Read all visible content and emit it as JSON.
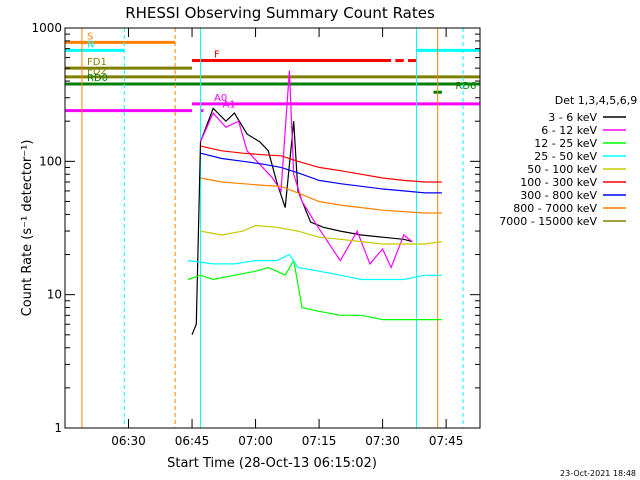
{
  "chart_data": {
    "type": "line",
    "title": "RHESSI Observing Summary Count Rates",
    "xlabel": "Start Time (28-Oct-13 06:15:02)",
    "ylabel": "Count Rate (s⁻¹ detector⁻¹)",
    "y_scale": "log",
    "xlim": [
      "06:15",
      "07:53"
    ],
    "ylim": [
      1,
      1000
    ],
    "x_ticks": [
      "06:30",
      "06:45",
      "07:00",
      "07:15",
      "07:30",
      "07:45"
    ],
    "y_ticks": [
      {
        "value": 1,
        "label": "1"
      },
      {
        "value": 10,
        "label": "10"
      },
      {
        "value": 100,
        "label": "100"
      },
      {
        "value": 1000,
        "label": "1000"
      }
    ],
    "legend_title": "Det 1,3,4,5,6,9",
    "legend_position": "right",
    "timestamp": "23-Oct-2021 18:48",
    "series": [
      {
        "name": "3 - 6 keV",
        "color": "#000000",
        "points": [
          [
            "06:45",
            5
          ],
          [
            "06:46",
            6
          ],
          [
            "06:47",
            140
          ],
          [
            "06:50",
            250
          ],
          [
            "06:53",
            200
          ],
          [
            "06:55",
            230
          ],
          [
            "06:58",
            160
          ],
          [
            "07:01",
            140
          ],
          [
            "07:03",
            120
          ],
          [
            "07:05",
            70
          ],
          [
            "07:07",
            45
          ],
          [
            "07:09",
            200
          ],
          [
            "07:10",
            60
          ],
          [
            "07:13",
            35
          ],
          [
            "07:16",
            32
          ],
          [
            "07:20",
            30
          ],
          [
            "07:25",
            28
          ],
          [
            "07:30",
            27
          ],
          [
            "07:35",
            26
          ],
          [
            "07:37",
            25
          ]
        ]
      },
      {
        "name": "6 - 12 keV",
        "color": "#ff00ff",
        "points": [
          [
            "06:47",
            140
          ],
          [
            "06:50",
            230
          ],
          [
            "06:53",
            180
          ],
          [
            "06:56",
            200
          ],
          [
            "06:58",
            120
          ],
          [
            "07:01",
            95
          ],
          [
            "07:04",
            75
          ],
          [
            "07:06",
            60
          ],
          [
            "07:08",
            480
          ],
          [
            "07:09",
            80
          ],
          [
            "07:11",
            50
          ],
          [
            "07:14",
            35
          ],
          [
            "07:17",
            25
          ],
          [
            "07:20",
            18
          ],
          [
            "07:24",
            30
          ],
          [
            "07:27",
            17
          ],
          [
            "07:30",
            22
          ],
          [
            "07:32",
            16
          ],
          [
            "07:35",
            28
          ],
          [
            "07:37",
            25
          ]
        ]
      },
      {
        "name": "12 - 25 keV",
        "color": "#00ff00",
        "points": [
          [
            "06:44",
            13
          ],
          [
            "06:47",
            14
          ],
          [
            "06:50",
            13
          ],
          [
            "06:55",
            14
          ],
          [
            "07:00",
            15
          ],
          [
            "07:03",
            16
          ],
          [
            "07:05",
            15
          ],
          [
            "07:07",
            14
          ],
          [
            "07:09",
            18
          ],
          [
            "07:11",
            8
          ],
          [
            "07:15",
            7.5
          ],
          [
            "07:20",
            7
          ],
          [
            "07:25",
            7
          ],
          [
            "07:30",
            6.5
          ],
          [
            "07:35",
            6.5
          ],
          [
            "07:40",
            6.5
          ],
          [
            "07:44",
            6.5
          ]
        ]
      },
      {
        "name": "25 - 50 keV",
        "color": "#00ffff",
        "points": [
          [
            "06:44",
            18
          ],
          [
            "06:50",
            17
          ],
          [
            "06:55",
            17
          ],
          [
            "07:00",
            18
          ],
          [
            "07:05",
            18
          ],
          [
            "07:08",
            20
          ],
          [
            "07:10",
            16
          ],
          [
            "07:15",
            15
          ],
          [
            "07:20",
            14
          ],
          [
            "07:25",
            13
          ],
          [
            "07:30",
            13
          ],
          [
            "07:35",
            13
          ],
          [
            "07:40",
            14
          ],
          [
            "07:44",
            14
          ]
        ]
      },
      {
        "name": "50 - 100 keV",
        "color": "#c8c800",
        "points": [
          [
            "06:47",
            30
          ],
          [
            "06:52",
            28
          ],
          [
            "06:57",
            30
          ],
          [
            "07:00",
            33
          ],
          [
            "07:05",
            32
          ],
          [
            "07:10",
            30
          ],
          [
            "07:15",
            27
          ],
          [
            "07:20",
            26
          ],
          [
            "07:25",
            25
          ],
          [
            "07:30",
            24
          ],
          [
            "07:35",
            24
          ],
          [
            "07:40",
            24
          ],
          [
            "07:44",
            25
          ]
        ]
      },
      {
        "name": "100 - 300 keV",
        "color": "#ff0000",
        "points": [
          [
            "06:47",
            130
          ],
          [
            "06:52",
            120
          ],
          [
            "06:57",
            115
          ],
          [
            "07:02",
            112
          ],
          [
            "07:06",
            110
          ],
          [
            "07:10",
            100
          ],
          [
            "07:15",
            90
          ],
          [
            "07:20",
            85
          ],
          [
            "07:25",
            80
          ],
          [
            "07:30",
            75
          ],
          [
            "07:35",
            72
          ],
          [
            "07:40",
            70
          ],
          [
            "07:44",
            70
          ]
        ]
      },
      {
        "name": "300 - 800 keV",
        "color": "#0000ff",
        "points": [
          [
            "06:47",
            115
          ],
          [
            "06:52",
            105
          ],
          [
            "06:57",
            100
          ],
          [
            "07:02",
            95
          ],
          [
            "07:06",
            90
          ],
          [
            "07:10",
            82
          ],
          [
            "07:15",
            72
          ],
          [
            "07:20",
            68
          ],
          [
            "07:25",
            65
          ],
          [
            "07:30",
            62
          ],
          [
            "07:35",
            60
          ],
          [
            "07:40",
            58
          ],
          [
            "07:44",
            58
          ]
        ]
      },
      {
        "name": "800 - 7000 keV",
        "color": "#ff8000",
        "points": [
          [
            "06:47",
            75
          ],
          [
            "06:52",
            70
          ],
          [
            "06:57",
            68
          ],
          [
            "07:02",
            66
          ],
          [
            "07:06",
            65
          ],
          [
            "07:10",
            58
          ],
          [
            "07:15",
            50
          ],
          [
            "07:20",
            47
          ],
          [
            "07:25",
            45
          ],
          [
            "07:30",
            43
          ],
          [
            "07:35",
            42
          ],
          [
            "07:40",
            41
          ],
          [
            "07:44",
            41
          ]
        ]
      },
      {
        "name": "7000 - 15000 keV",
        "color": "#808000",
        "points": []
      }
    ],
    "flags": [
      {
        "label": "S",
        "color": "#ff8000",
        "y": 780,
        "start": "06:15",
        "end": "06:41"
      },
      {
        "label": "N",
        "color": "#00ffff",
        "y": 680,
        "start": "06:15",
        "end": "06:29"
      },
      {
        "label": "N",
        "color": "#00ffff",
        "y": 680,
        "start": "07:38",
        "end": "07:53"
      },
      {
        "label": "F",
        "color": "#ff0000",
        "y": 570,
        "start": "06:45",
        "end": "07:32"
      },
      {
        "label": "F",
        "color": "#ff0000",
        "y": 570,
        "start": "07:33",
        "end": "07:35"
      },
      {
        "label": "F",
        "color": "#ff0000",
        "y": 570,
        "start": "07:36",
        "end": "07:38"
      },
      {
        "label": "FD1",
        "color": "#808000",
        "y": 500,
        "start": "06:15",
        "end": "06:45"
      },
      {
        "label": "FD2",
        "color": "#808000",
        "y": 430,
        "start": "06:15",
        "end": "07:53"
      },
      {
        "label": "RD0",
        "color": "#008000",
        "y": 380,
        "start": "06:15",
        "end": "07:53"
      },
      {
        "label": "RD6",
        "color": "#008000",
        "y": 330,
        "start": "07:42",
        "end": "07:44"
      },
      {
        "label": "A0",
        "color": "#ff00ff",
        "y": 270,
        "start": "06:45",
        "end": "07:53"
      },
      {
        "label": "A0",
        "color": "#ff00ff",
        "y": 240,
        "start": "06:15",
        "end": "06:45"
      },
      {
        "label": "A1",
        "color": "#ff00ff",
        "y": 240,
        "start": "06:47",
        "end": "06:47"
      }
    ],
    "vertical_markers": [
      {
        "time": "06:19",
        "color": "#ff8000",
        "style": "solid"
      },
      {
        "time": "06:29",
        "color": "#00ffff",
        "style": "dashed"
      },
      {
        "time": "06:41",
        "color": "#ff8000",
        "style": "dashed"
      },
      {
        "time": "06:47",
        "color": "#00ffff",
        "style": "solid"
      },
      {
        "time": "07:38",
        "color": "#00ffff",
        "style": "solid"
      },
      {
        "time": "07:43",
        "color": "#ff8000",
        "style": "solid"
      },
      {
        "time": "07:49",
        "color": "#00ffff",
        "style": "dashed"
      }
    ]
  }
}
